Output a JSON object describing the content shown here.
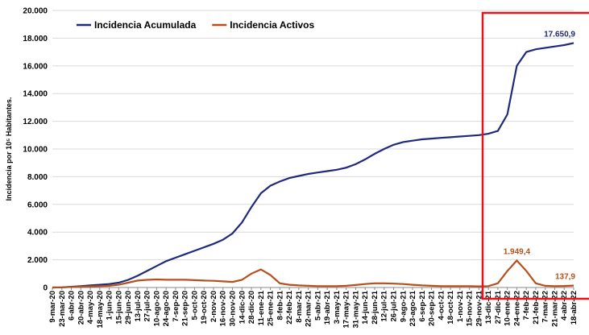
{
  "chart_data": {
    "type": "line",
    "y_label": "Incidencia por 10⁵ Habitantes.",
    "categories": [
      "9-mar-20",
      "23-mar-20",
      "6-abr-20",
      "20-abr-20",
      "4-may-20",
      "18-may-20",
      "1-jun-20",
      "15-jun-20",
      "29-jun-20",
      "13-jul-20",
      "27-jul-20",
      "10-ago-20",
      "24-ago-20",
      "7-sep-20",
      "21-sep-20",
      "5-oct-20",
      "19-oct-20",
      "2-nov-20",
      "16-nov-20",
      "30-nov-20",
      "14-dic-20",
      "28-dic-20",
      "11-ene-21",
      "25-ene-21",
      "8-feb-21",
      "22-feb-21",
      "8-mar-21",
      "22-mar-21",
      "5-abr-21",
      "19-abr-21",
      "3-may-21",
      "17-may-21",
      "31-may-21",
      "14-jun-21",
      "28-jun-21",
      "12-jul-21",
      "26-jul-21",
      "9-ago-21",
      "23-ago-21",
      "6-sep-21",
      "20-sep-21",
      "4-oct-21",
      "18-oct-21",
      "1-nov-21",
      "15-nov-21",
      "29-nov-21",
      "13-dic-21",
      "27-dic-21",
      "10-ene-22",
      "24-ene-22",
      "7-feb-22",
      "21-feb-22",
      "7-mar-22",
      "21-mar-22",
      "4-abr-22",
      "18-abr-22"
    ],
    "series": [
      {
        "name": "Incidencia Acumulada",
        "color": "#1f2a7a",
        "values": [
          0,
          10,
          50,
          100,
          150,
          200,
          250,
          350,
          550,
          850,
          1200,
          1550,
          1900,
          2150,
          2400,
          2650,
          2900,
          3150,
          3450,
          3900,
          4700,
          5800,
          6800,
          7350,
          7650,
          7900,
          8050,
          8200,
          8300,
          8400,
          8500,
          8650,
          8900,
          9250,
          9650,
          10000,
          10300,
          10500,
          10600,
          10700,
          10750,
          10800,
          10850,
          10900,
          10950,
          11000,
          11100,
          11300,
          12500,
          16000,
          17000,
          17200,
          17300,
          17400,
          17500,
          17650.9
        ],
        "value_labels": [
          null,
          null,
          null,
          null,
          null,
          null,
          null,
          null,
          null,
          null,
          null,
          null,
          null,
          null,
          null,
          null,
          null,
          null,
          null,
          null,
          null,
          null,
          null,
          null,
          null,
          null,
          null,
          null,
          null,
          null,
          null,
          null,
          null,
          null,
          null,
          null,
          null,
          null,
          null,
          null,
          null,
          null,
          null,
          null,
          null,
          null,
          null,
          null,
          null,
          null,
          null,
          null,
          null,
          null,
          null,
          "17.650,9"
        ]
      },
      {
        "name": "Incidencia Activos",
        "color": "#b5501c",
        "values": [
          0,
          10,
          40,
          60,
          80,
          100,
          120,
          200,
          350,
          500,
          550,
          580,
          560,
          560,
          560,
          530,
          500,
          480,
          440,
          400,
          550,
          1000,
          1300,
          900,
          300,
          200,
          150,
          120,
          100,
          100,
          100,
          120,
          180,
          250,
          300,
          300,
          280,
          250,
          200,
          150,
          120,
          100,
          100,
          100,
          100,
          80,
          100,
          300,
          1200,
          1949.4,
          1200,
          300,
          120,
          100,
          110,
          137.9
        ],
        "value_labels": [
          null,
          null,
          null,
          null,
          null,
          null,
          null,
          null,
          null,
          null,
          null,
          null,
          null,
          null,
          null,
          null,
          null,
          null,
          null,
          null,
          null,
          null,
          null,
          null,
          null,
          null,
          null,
          null,
          null,
          null,
          null,
          null,
          null,
          null,
          null,
          null,
          null,
          null,
          null,
          null,
          null,
          null,
          null,
          null,
          null,
          null,
          null,
          null,
          null,
          "1.949,4",
          null,
          null,
          null,
          null,
          null,
          "137,9"
        ]
      }
    ],
    "ylim": [
      0,
      20000
    ],
    "yticks": [
      0,
      {
        "value": 2000,
        "label": "2.000"
      },
      {
        "value": 4000,
        "label": "4.000"
      },
      {
        "value": 6000,
        "label": "6.000"
      },
      {
        "value": 8000,
        "label": "8.000"
      },
      {
        "value": 10000,
        "label": "10.000"
      },
      {
        "value": 12000,
        "label": "12.000"
      },
      {
        "value": 14000,
        "label": "14.000"
      },
      {
        "value": 16000,
        "label": "16.000"
      },
      {
        "value": 18000,
        "label": "18.000"
      },
      {
        "value": 20000,
        "label": "20.000"
      }
    ],
    "grid": true
  }
}
